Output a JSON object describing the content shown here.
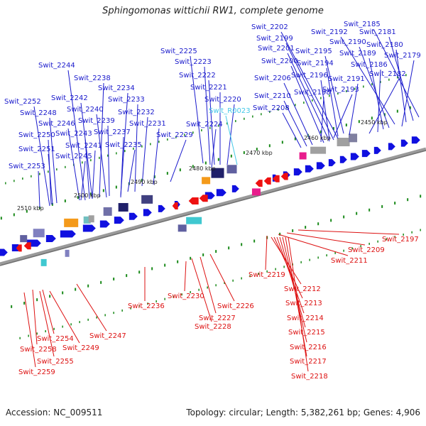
{
  "title": "Sphingomonas wittichii RW1, complete genome",
  "footer": {
    "accession": "Accession: NC_009511",
    "summary": "Topology: circular; Length: 5,382,261 bp; Genes: 4,906"
  },
  "colors": {
    "top_labels": "#1a1acc",
    "rna_label": "#44c8e8",
    "bottom_labels": "#dd1111",
    "forward_cds": "#1010e0",
    "reverse_cds": "#ee1111",
    "backbone": "#808080",
    "tick": "#1a8a1a"
  },
  "scale_labels": [
    "2450 kbp",
    "2460 kbp",
    "2470 kbp",
    "2480 kbp",
    "2490 kbp",
    "2500 kbp",
    "2510 kbp"
  ],
  "top_labels": [
    "Swit_2185",
    "Swit_2181",
    "Swit_2192",
    "Swit_2180",
    "Swit_2190",
    "Swit_2179",
    "Swit_2189",
    "Swit_2186",
    "Swit_2182",
    "Swit_2202",
    "Swit_2199",
    "Swit_2201",
    "Swit_2195",
    "Swit_2200",
    "Swit_2194",
    "Swit_2196",
    "Swit_2191",
    "Swit_2206",
    "Swit_2193",
    "Swit_2198",
    "Swit_2210",
    "Swit_2208",
    "Swit_2225",
    "Swit_2223",
    "Swit_2222",
    "Swit_2221",
    "Swit_2220",
    "Swit_R0023",
    "Swit_2224",
    "Swit_2244",
    "Swit_2238",
    "Swit_2234",
    "Swit_2242",
    "Swit_2233",
    "Swit_2252",
    "Swit_2240",
    "Swit_2232",
    "Swit_2248",
    "Swit_2239",
    "Swit_2246",
    "Swit_2231",
    "Swit_2243",
    "Swit_2237",
    "Swit_2250",
    "Swit_2229",
    "Swit_2241",
    "Swit_2235",
    "Swit_2251",
    "Swit_2245",
    "Swit_2253"
  ],
  "bottom_labels": [
    "Swit_2197",
    "Swit_2209",
    "Swit_2211",
    "Swit_2219",
    "Swit_2212",
    "Swit_2213",
    "Swit_2214",
    "Swit_2215",
    "Swit_2216",
    "Swit_2217",
    "Swit_2218",
    "Swit_2236",
    "Swit_2230",
    "Swit_2226",
    "Swit_2227",
    "Swit_2228",
    "Swit_2247",
    "Swit_2254",
    "Swit_2249",
    "Swit_2258",
    "Swit_2255",
    "Swit_2259"
  ]
}
